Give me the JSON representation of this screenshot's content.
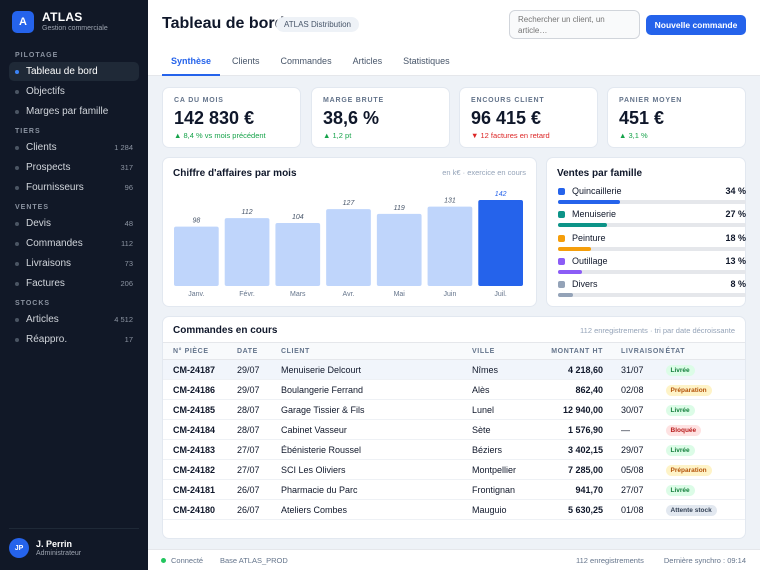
{
  "brand": {
    "logo_letter": "A",
    "name": "ATLAS",
    "subtitle": "Gestion commerciale"
  },
  "sidebar": {
    "sections": [
      {
        "label": "PILOTAGE",
        "items": [
          {
            "label": "Tableau de bord",
            "count": "",
            "active": true
          },
          {
            "label": "Objectifs",
            "count": ""
          },
          {
            "label": "Marges par famille",
            "count": ""
          }
        ]
      },
      {
        "label": "TIERS",
        "items": [
          {
            "label": "Clients",
            "count": "1 284"
          },
          {
            "label": "Prospects",
            "count": "317"
          },
          {
            "label": "Fournisseurs",
            "count": "96"
          }
        ]
      },
      {
        "label": "VENTES",
        "items": [
          {
            "label": "Devis",
            "count": "48"
          },
          {
            "label": "Commandes",
            "count": "112"
          },
          {
            "label": "Livraisons",
            "count": "73"
          },
          {
            "label": "Factures",
            "count": "206"
          }
        ]
      },
      {
        "label": "STOCKS",
        "items": [
          {
            "label": "Articles",
            "count": "4 512"
          },
          {
            "label": "Réappro.",
            "count": "17"
          }
        ]
      }
    ]
  },
  "user": {
    "initials": "JP",
    "name": "J. Perrin",
    "role": "Administrateur"
  },
  "header": {
    "title": "Tableau de bord",
    "org": "ATLAS Distribution",
    "search_placeholder": "Rechercher un client, un article…",
    "new_order_label": "Nouvelle commande",
    "tabs": [
      {
        "label": "Synthèse",
        "active": true
      },
      {
        "label": "Clients"
      },
      {
        "label": "Commandes"
      },
      {
        "label": "Articles"
      },
      {
        "label": "Statistiques"
      }
    ]
  },
  "kpis": [
    {
      "label": "CA DU MOIS",
      "value": "142 830 €",
      "delta": "▲ 8,4 % vs mois précédent",
      "trend": "up"
    },
    {
      "label": "MARGE BRUTE",
      "value": "38,6 %",
      "delta": "▲ 1,2 pt",
      "trend": "up"
    },
    {
      "label": "ENCOURS CLIENT",
      "value": "96 415 €",
      "delta": "▼ 12 factures en retard",
      "trend": "down"
    },
    {
      "label": "PANIER MOYEN",
      "value": "451 €",
      "delta": "▲ 3,1 %",
      "trend": "up"
    }
  ],
  "chart_data": {
    "type": "bar",
    "title": "Chiffre d'affaires par mois",
    "subtitle": "en k€ · exercice en cours",
    "categories": [
      "Janv.",
      "Févr.",
      "Mars",
      "Avr.",
      "Mai",
      "Juin",
      "Juil."
    ],
    "values": [
      98,
      112,
      104,
      127,
      119,
      131,
      142
    ],
    "ylim": [
      0,
      142
    ],
    "highlight_index": 6,
    "colors": {
      "bar": "#bfd5fb",
      "highlight": "#2563eb"
    },
    "grid": false
  },
  "families": {
    "title": "Ventes par famille",
    "items": [
      {
        "label": "Quincaillerie",
        "pct_label": "34 %",
        "share": 0.34,
        "color": "#2563eb"
      },
      {
        "label": "Menuiserie",
        "pct_label": "27 %",
        "share": 0.27,
        "color": "#0d9488"
      },
      {
        "label": "Peinture",
        "pct_label": "18 %",
        "share": 0.18,
        "color": "#f59e0b"
      },
      {
        "label": "Outillage",
        "pct_label": "13 %",
        "share": 0.13,
        "color": "#8b5cf6"
      },
      {
        "label": "Divers",
        "pct_label": "8 %",
        "share": 0.08,
        "color": "#94a3b8"
      }
    ]
  },
  "orders": {
    "title": "Commandes en cours",
    "note": "112 enregistrements · tri par date décroissante",
    "columns": [
      "N° PIÈCE",
      "DATE",
      "CLIENT",
      "VILLE",
      "MONTANT HT",
      "LIVRAISON",
      "ÉTAT"
    ],
    "rows": [
      {
        "id": "CM-24187",
        "date": "29/07",
        "client": "Menuiserie Delcourt",
        "city": "Nîmes",
        "amount": "4 218,60",
        "delivery": "31/07",
        "status": "Livrée",
        "kind": "ok",
        "selected": true
      },
      {
        "id": "CM-24186",
        "date": "29/07",
        "client": "Boulangerie Ferrand",
        "city": "Alès",
        "amount": "862,40",
        "delivery": "02/08",
        "status": "Préparation",
        "kind": "prep"
      },
      {
        "id": "CM-24185",
        "date": "28/07",
        "client": "Garage Tissier & Fils",
        "city": "Lunel",
        "amount": "12 940,00",
        "delivery": "30/07",
        "status": "Livrée",
        "kind": "ok"
      },
      {
        "id": "CM-24184",
        "date": "28/07",
        "client": "Cabinet Vasseur",
        "city": "Sète",
        "amount": "1 576,90",
        "delivery": "—",
        "status": "Bloquée",
        "kind": "block"
      },
      {
        "id": "CM-24183",
        "date": "27/07",
        "client": "Ébénisterie Roussel",
        "city": "Béziers",
        "amount": "3 402,15",
        "delivery": "29/07",
        "status": "Livrée",
        "kind": "ok"
      },
      {
        "id": "CM-24182",
        "date": "27/07",
        "client": "SCI Les Oliviers",
        "city": "Montpellier",
        "amount": "7 285,00",
        "delivery": "05/08",
        "status": "Préparation",
        "kind": "prep"
      },
      {
        "id": "CM-24181",
        "date": "26/07",
        "client": "Pharmacie du Parc",
        "city": "Frontignan",
        "amount": "941,70",
        "delivery": "27/07",
        "status": "Livrée",
        "kind": "ok"
      },
      {
        "id": "CM-24180",
        "date": "26/07",
        "client": "Ateliers Combes",
        "city": "Mauguio",
        "amount": "5 630,25",
        "delivery": "01/08",
        "status": "Attente stock",
        "kind": "wait"
      }
    ]
  },
  "status_colors": {
    "ok": {
      "bg": "#dcfce7",
      "fg": "#15803d"
    },
    "prep": {
      "bg": "#fef3c7",
      "fg": "#b45309"
    },
    "block": {
      "bg": "#fee2e2",
      "fg": "#b91c1c"
    },
    "wait": {
      "bg": "#e2e8f0",
      "fg": "#334155"
    }
  },
  "statusbar": {
    "connection": "Connecté",
    "database": "Base ATLAS_PROD",
    "records": "112 enregistrements",
    "sync": "Dernière synchro : 09:14"
  }
}
